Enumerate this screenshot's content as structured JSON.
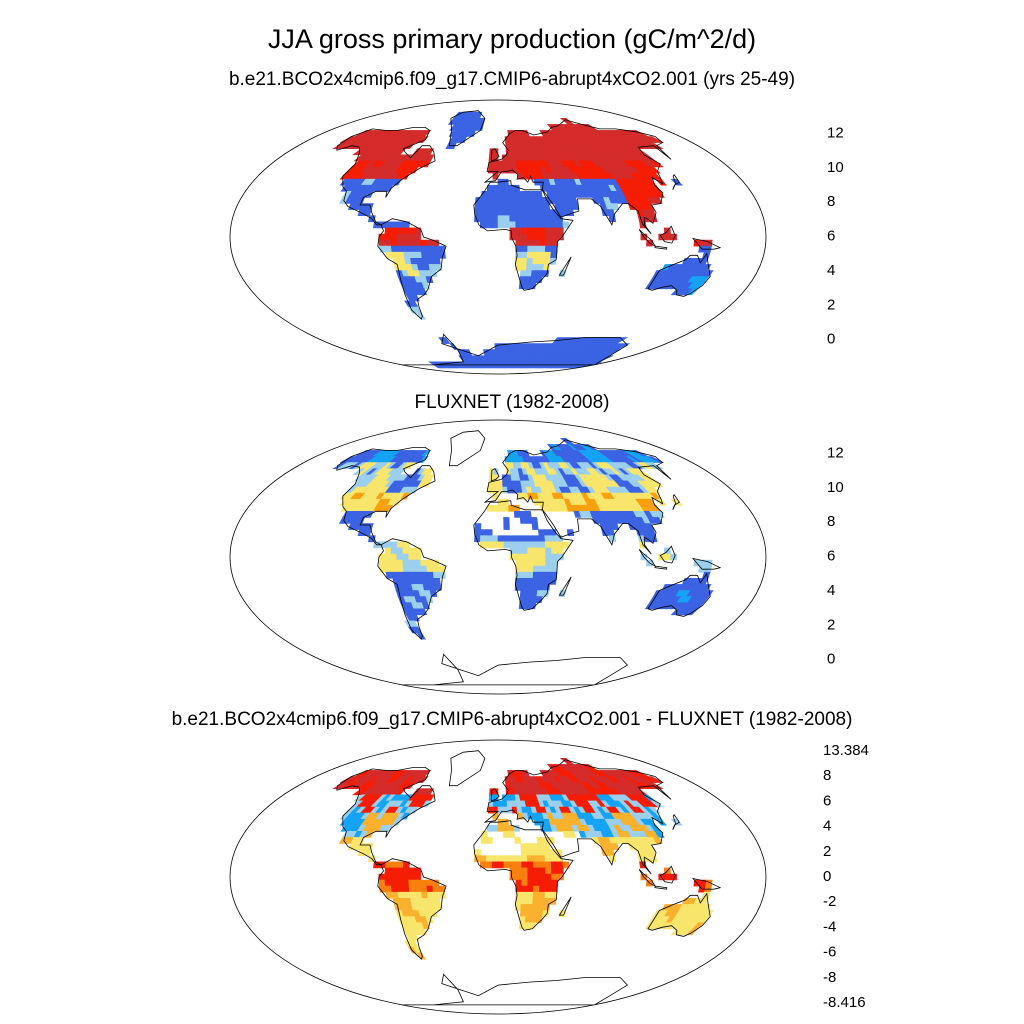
{
  "figure": {
    "title": "JJA gross primary production (gC/m^2/d)"
  },
  "chart_data": [
    {
      "type": "heatmap",
      "title": "b.e21.BCO2x4cmip6.f09_g17.CMIP6-abrupt4xCO2.001 (yrs 25-49)",
      "colorbar": {
        "colors": [
          "#3c17f5",
          "#3b63e3",
          "#14a3f5",
          "#9bcfed",
          "#f7e66b",
          "#f9a00e",
          "#f51d04",
          "#d42b2b"
        ],
        "tick_labels": [
          "0",
          "2",
          "4",
          "6",
          "8",
          "10",
          "12"
        ]
      }
    },
    {
      "type": "heatmap",
      "title": "FLUXNET (1982-2008)",
      "colorbar": {
        "colors": [
          "#3c17f5",
          "#3b63e3",
          "#14a3f5",
          "#9bcfed",
          "#f7e66b",
          "#f9a00e",
          "#f51d04",
          "#d42b2b"
        ],
        "tick_labels": [
          "0",
          "2",
          "4",
          "6",
          "8",
          "10",
          "12"
        ]
      }
    },
    {
      "type": "heatmap",
      "title": "b.e21.BCO2x4cmip6.f09_g17.CMIP6-abrupt4xCO2.001 - FLUXNET (1982-2008)",
      "colorbar": {
        "colors": [
          "#3c17f5",
          "#2a3fd6",
          "#3b63e3",
          "#14a3f5",
          "#9bcfed",
          "#f7e66b",
          "#f9b12e",
          "#f9800e",
          "#f51d04",
          "#d42b2b"
        ],
        "tick_labels": [
          "-8.416",
          "-8",
          "-6",
          "-4",
          "-2",
          "0",
          "2",
          "4",
          "6",
          "8",
          "13.384"
        ]
      }
    }
  ]
}
